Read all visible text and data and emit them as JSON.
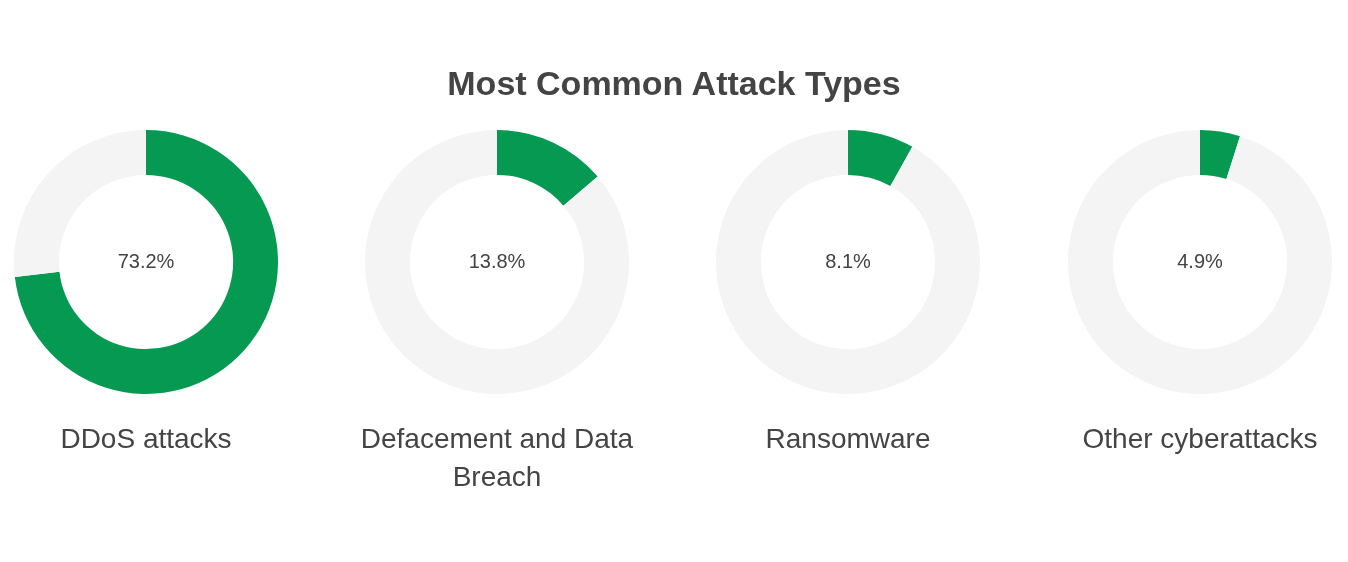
{
  "chart_data": [
    {
      "type": "other",
      "title": "Most Common Attack Types"
    },
    {
      "type": "donut",
      "title": "DDoS attacks",
      "categories": [
        null,
        null
      ],
      "values": [
        73.2,
        26.8
      ],
      "colors": [
        "#069952",
        "#f4f4f4"
      ],
      "value_labels": [
        "73.2%",
        null
      ]
    },
    {
      "type": "donut",
      "title": "Defacement and Data Breach",
      "categories": [
        null,
        null
      ],
      "values": [
        13.8,
        86.2
      ],
      "colors": [
        "#069952",
        "#f4f4f4"
      ],
      "value_labels": [
        "13.8%",
        null
      ]
    },
    {
      "type": "donut",
      "title": "Ransomware",
      "categories": [
        null,
        null
      ],
      "values": [
        8.1,
        91.9
      ],
      "colors": [
        "#069952",
        "#f4f4f4"
      ],
      "value_labels": [
        "8.1%",
        null
      ]
    },
    {
      "type": "donut",
      "title": "Other cyberattacks",
      "categories": [
        null,
        null
      ],
      "values": [
        4.9,
        95.1
      ],
      "colors": [
        "#069952",
        "#f4f4f4"
      ],
      "value_labels": [
        "4.9%",
        null
      ]
    }
  ]
}
